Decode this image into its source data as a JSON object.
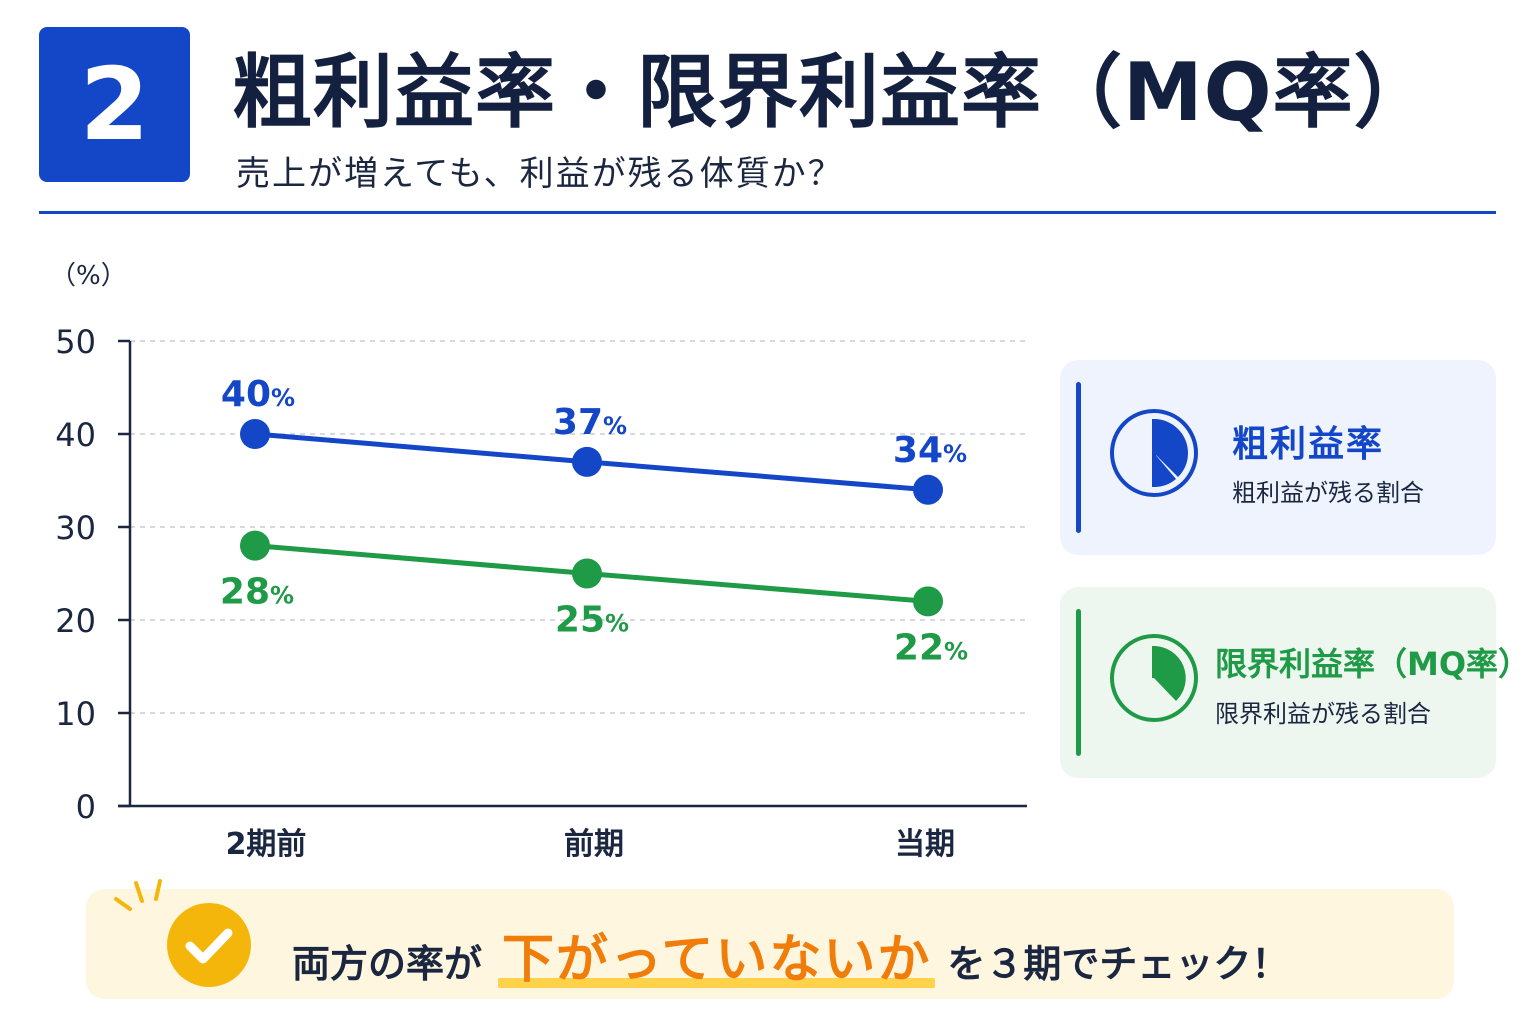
{
  "header": {
    "number": "2",
    "title": "粗利益率・限界利益率（MQ率）",
    "subtitle": "売上が増えても、利益が残る体質か？"
  },
  "chart_data": {
    "type": "line",
    "ylabel": "（%）",
    "ylim": [
      0,
      50
    ],
    "yticks": [
      0,
      10,
      20,
      30,
      40,
      50
    ],
    "categories": [
      "2期前",
      "前期",
      "当期"
    ],
    "grid": true,
    "series": [
      {
        "name": "粗利益率",
        "values": [
          40,
          37,
          34
        ],
        "color": "#1447c8",
        "labels": [
          "40",
          "37",
          "34"
        ]
      },
      {
        "name": "限界利益率（MQ率）",
        "values": [
          28,
          25,
          22
        ],
        "color": "#1f9a46",
        "labels": [
          "28",
          "25",
          "22"
        ]
      }
    ],
    "label_unit": "%"
  },
  "legend": {
    "gross": {
      "title": "粗利益率",
      "desc": "粗利益が残る割合",
      "icon": "pie-chart-icon"
    },
    "mq": {
      "title": "限界利益率（MQ率）",
      "desc": "限界利益が残る割合",
      "icon": "pie-chart-icon"
    }
  },
  "callout": {
    "prefix": "両方の率が",
    "highlight": "下がっていないか",
    "suffix": "を３期でチェック！",
    "icon": "check-circle-icon",
    "colors": {
      "highlight": "#f07c0a",
      "underline": "#ffd24a",
      "check": "#f5b60c"
    }
  }
}
